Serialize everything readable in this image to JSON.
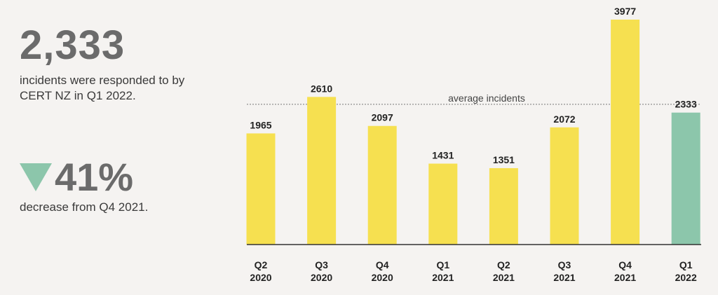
{
  "summary": {
    "headline_value": "2,333",
    "headline_caption": "incidents were responded to by CERT NZ in Q1 2022.",
    "change_value": "41%",
    "change_direction": "down",
    "change_caption": "decrease from Q4 2021."
  },
  "colors": {
    "bar": "#f6e050",
    "highlight_bar": "#8cc6ab",
    "baseline": "#333333",
    "average_line": "#777777",
    "triangle": "#8cc6ab"
  },
  "chart_data": {
    "type": "bar",
    "categories": [
      [
        "Q2",
        "2020"
      ],
      [
        "Q3",
        "2020"
      ],
      [
        "Q4",
        "2020"
      ],
      [
        "Q1",
        "2021"
      ],
      [
        "Q2",
        "2021"
      ],
      [
        "Q3",
        "2021"
      ],
      [
        "Q4",
        "2021"
      ],
      [
        "Q1",
        "2022"
      ]
    ],
    "values": [
      1965,
      2610,
      2097,
      1431,
      1351,
      2072,
      3977,
      2333
    ],
    "highlight_index": 7,
    "average_label": "average incidents",
    "average_value": 2480,
    "ylim": [
      0,
      4200
    ],
    "grid": false,
    "title": "",
    "xlabel": "",
    "ylabel": ""
  }
}
